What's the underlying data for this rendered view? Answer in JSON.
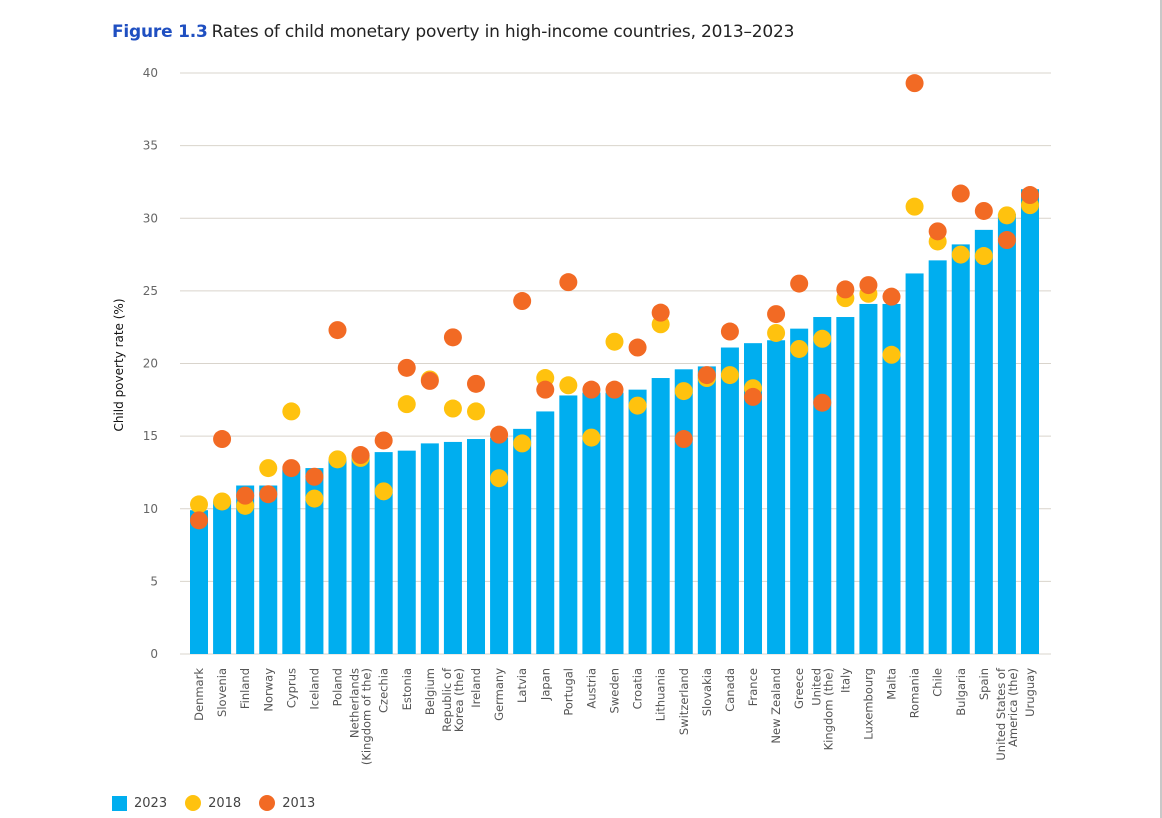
{
  "header": {
    "figure_label": "Figure 1.3",
    "title": "Rates of child monetary poverty in high-income countries, 2013–2023"
  },
  "colors": {
    "figure_label": "#1f4fc1",
    "bar_2023": "#00aeef",
    "dot_2018": "#ffc20e",
    "dot_2013": "#f26a24",
    "gridline": "#d9d4cc"
  },
  "legend": [
    {
      "label": "2023",
      "marker": "square",
      "color": "#00aeef"
    },
    {
      "label": "2018",
      "marker": "circle",
      "color": "#ffc20e"
    },
    {
      "label": "2013",
      "marker": "circle",
      "color": "#f26a24"
    }
  ],
  "chart_data": {
    "type": "bar",
    "title": "Rates of child monetary poverty in high-income countries, 2013–2023",
    "xlabel": "",
    "ylabel": "Child poverty rate (%)",
    "ylim": [
      0,
      40
    ],
    "yticks": [
      0,
      5,
      10,
      15,
      20,
      25,
      30,
      35,
      40
    ],
    "grid": true,
    "legend_position": "bottom-left",
    "categories": [
      [
        "Denmark"
      ],
      [
        "Slovenia"
      ],
      [
        "Finland"
      ],
      [
        "Norway"
      ],
      [
        "Cyprus"
      ],
      [
        "Iceland"
      ],
      [
        "Poland"
      ],
      [
        "Netherlands",
        "(Kingdom of the)"
      ],
      [
        "Czechia"
      ],
      [
        "Estonia"
      ],
      [
        "Belgium"
      ],
      [
        "Republic of",
        "Korea (the)"
      ],
      [
        "Ireland"
      ],
      [
        "Germany"
      ],
      [
        "Latvia"
      ],
      [
        "Japan"
      ],
      [
        "Portugal"
      ],
      [
        "Austria"
      ],
      [
        "Sweden"
      ],
      [
        "Croatia"
      ],
      [
        "Lithuania"
      ],
      [
        "Switzerland"
      ],
      [
        "Slovakia"
      ],
      [
        "Canada"
      ],
      [
        "France"
      ],
      [
        "New Zealand"
      ],
      [
        "Greece"
      ],
      [
        "United",
        "Kingdom (the)"
      ],
      [
        "Italy"
      ],
      [
        "Luxembourg"
      ],
      [
        "Malta"
      ],
      [
        "Romania"
      ],
      [
        "Chile"
      ],
      [
        "Bulgaria"
      ],
      [
        "Spain"
      ],
      [
        "United States of",
        "America (the)"
      ],
      [
        "Uruguay"
      ]
    ],
    "series": [
      {
        "name": "2023",
        "type": "bar",
        "values": [
          9.9,
          10.5,
          11.6,
          11.6,
          12.7,
          12.8,
          13.4,
          13.7,
          13.9,
          14.0,
          14.5,
          14.6,
          14.8,
          14.9,
          15.5,
          16.7,
          17.8,
          18.0,
          18.0,
          18.2,
          19.0,
          19.6,
          19.8,
          21.1,
          21.4,
          21.6,
          22.4,
          23.2,
          23.2,
          24.1,
          24.1,
          26.2,
          27.1,
          28.2,
          29.2,
          30.3,
          32.0
        ]
      },
      {
        "name": "2018",
        "type": "scatter",
        "values": [
          10.3,
          10.5,
          10.2,
          12.8,
          16.7,
          10.7,
          13.4,
          13.5,
          11.2,
          17.2,
          18.9,
          16.9,
          16.7,
          12.1,
          14.5,
          19.0,
          18.5,
          14.9,
          21.5,
          17.1,
          22.7,
          18.1,
          19.0,
          19.2,
          18.3,
          22.1,
          21.0,
          21.7,
          24.5,
          24.8,
          20.6,
          30.8,
          28.4,
          27.5,
          27.4,
          30.2,
          30.9
        ]
      },
      {
        "name": "2013",
        "type": "scatter",
        "values": [
          9.2,
          14.8,
          10.9,
          11.0,
          12.8,
          12.2,
          22.3,
          13.7,
          14.7,
          19.7,
          18.8,
          21.8,
          18.6,
          15.1,
          24.3,
          18.2,
          25.6,
          18.2,
          18.2,
          21.1,
          23.5,
          14.8,
          19.2,
          22.2,
          17.7,
          23.4,
          25.5,
          17.3,
          25.1,
          25.4,
          24.6,
          39.3,
          29.1,
          31.7,
          30.5,
          28.5,
          31.6
        ]
      }
    ]
  }
}
